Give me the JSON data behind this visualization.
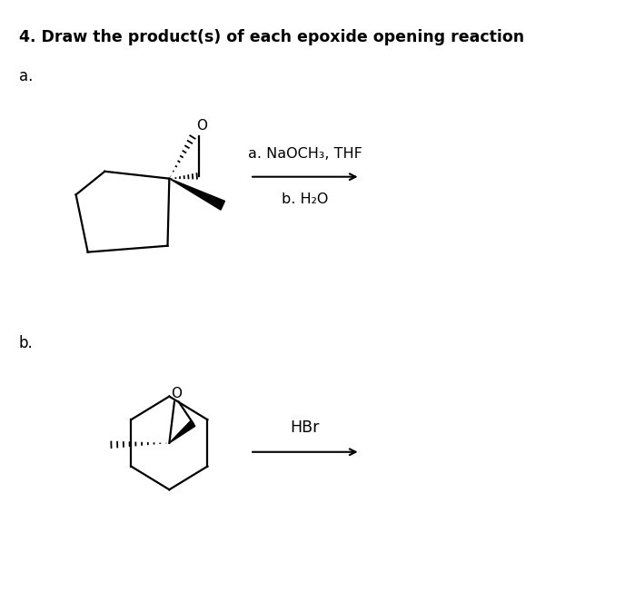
{
  "title": "4. Draw the product(s) of each epoxide opening reaction",
  "label_a": "a.",
  "label_b": "b.",
  "reagents_a_line1": "a. NaOCH₃, THF",
  "reagents_a_line2": "b. H₂O",
  "reagent_b": "HBr",
  "bg_color": "#ffffff",
  "text_color": "#000000",
  "title_fontsize": 12.5,
  "label_fontsize": 12,
  "reagent_fontsize": 11.5
}
